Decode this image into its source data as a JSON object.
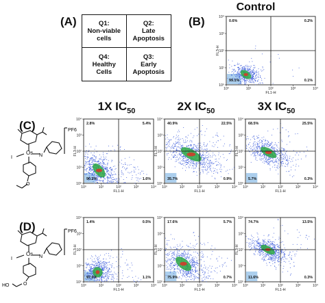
{
  "panels": {
    "A": "(A)",
    "B": "(B)",
    "C": "(C)",
    "D": "(D)"
  },
  "legend_table": [
    {
      "q": "Q1:",
      "line1": "Non-viable",
      "line2": "cells"
    },
    {
      "q": "Q2:",
      "line1": "Late",
      "line2": "Apoptosis"
    },
    {
      "q": "Q4:",
      "line1": "Healthy",
      "line2": "Cells"
    },
    {
      "q": "Q3:",
      "line1": "Early",
      "line2": "Apoptosis"
    }
  ],
  "control_title": "Control",
  "column_headers": [
    {
      "main": "1X IC",
      "sub": "50"
    },
    {
      "main": "2X IC",
      "sub": "50"
    },
    {
      "main": "3X IC",
      "sub": "50"
    }
  ],
  "counterion": "PF6",
  "axis_labels": {
    "x": "FL1-H",
    "y": "FL3-H"
  },
  "ticks": [
    "10⁰",
    "10¹",
    "10²",
    "10³",
    "10⁴"
  ],
  "colors": {
    "dots": "#3b5bdb",
    "core_green": "#2ea843",
    "core_red": "#d43a2a",
    "gate": "#9ec7ea"
  },
  "chart_data": [
    {
      "type": "scatter",
      "name": "control",
      "title": "Control",
      "xlabel": "FL1-H",
      "ylabel": "FL3-H",
      "xscale": "log",
      "yscale": "log",
      "xlim": [
        1,
        10000
      ],
      "ylim": [
        1,
        10000
      ],
      "quadrants": {
        "Q1": "0.6%",
        "Q2": "0.2%",
        "Q3": "0.1%",
        "Q4": "99.1%"
      },
      "cluster": {
        "cx": 0.22,
        "cy": 0.15,
        "rx": 0.09,
        "ry": 0.07,
        "angle": -35,
        "spread": 0.04,
        "n": 500
      }
    },
    {
      "type": "scatter",
      "name": "C-1X",
      "xlabel": "FL1-H",
      "ylabel": "FL3-H",
      "xscale": "log",
      "yscale": "log",
      "xlim": [
        1,
        10000
      ],
      "ylim": [
        1,
        10000
      ],
      "quadrants": {
        "Q1": "2.8%",
        "Q2": "5.4%",
        "Q3": "1.6%",
        "Q4": "90.2%"
      },
      "cluster": {
        "cx": 0.22,
        "cy": 0.2,
        "rx": 0.16,
        "ry": 0.09,
        "angle": -50,
        "spread": 0.25,
        "n": 800
      }
    },
    {
      "type": "scatter",
      "name": "C-2X",
      "xlabel": "FL1-H",
      "ylabel": "FL3-H",
      "xscale": "log",
      "yscale": "log",
      "xlim": [
        1,
        10000
      ],
      "ylim": [
        1,
        10000
      ],
      "quadrants": {
        "Q1": "40.9%",
        "Q2": "22.5%",
        "Q3": "0.9%",
        "Q4": "35.7%"
      },
      "cluster": {
        "cx": 0.38,
        "cy": 0.45,
        "rx": 0.22,
        "ry": 0.1,
        "angle": -30,
        "spread": 0.12,
        "n": 800
      }
    },
    {
      "type": "scatter",
      "name": "C-3X",
      "xlabel": "FL1-H",
      "ylabel": "FL3-H",
      "xscale": "log",
      "yscale": "log",
      "xlim": [
        1,
        10000
      ],
      "ylim": [
        1,
        10000
      ],
      "quadrants": {
        "Q1": "68.5%",
        "Q2": "25.5%",
        "Q3": "0.3%",
        "Q4": "5.7%"
      },
      "cluster": {
        "cx": 0.33,
        "cy": 0.48,
        "rx": 0.17,
        "ry": 0.08,
        "angle": -30,
        "spread": 0.1,
        "n": 700
      }
    },
    {
      "type": "scatter",
      "name": "D-1X",
      "xlabel": "FL1-H",
      "ylabel": "FL3-H",
      "xscale": "log",
      "yscale": "log",
      "xlim": [
        1,
        10000
      ],
      "ylim": [
        1,
        10000
      ],
      "quadrants": {
        "Q1": "1.4%",
        "Q2": "0.5%",
        "Q3": "1.1%",
        "Q4": "97.0%"
      },
      "cluster": {
        "cx": 0.2,
        "cy": 0.15,
        "rx": 0.1,
        "ry": 0.1,
        "angle": -60,
        "spread": 0.2,
        "n": 700
      }
    },
    {
      "type": "scatter",
      "name": "D-2X",
      "xlabel": "FL1-H",
      "ylabel": "FL3-H",
      "xscale": "log",
      "yscale": "log",
      "xlim": [
        1,
        10000
      ],
      "ylim": [
        1,
        10000
      ],
      "quadrants": {
        "Q1": "17.6%",
        "Q2": "5.7%",
        "Q3": "0.7%",
        "Q4": "75.9%"
      },
      "cluster": {
        "cx": 0.27,
        "cy": 0.28,
        "rx": 0.18,
        "ry": 0.1,
        "angle": -40,
        "spread": 0.15,
        "n": 800
      }
    },
    {
      "type": "scatter",
      "name": "D-3X",
      "xlabel": "FL1-H",
      "ylabel": "FL3-H",
      "xscale": "log",
      "yscale": "log",
      "xlim": [
        1,
        10000
      ],
      "ylim": [
        1,
        10000
      ],
      "quadrants": {
        "Q1": "74.7%",
        "Q2": "13.5%",
        "Q3": "0.3%",
        "Q4": "11.6%"
      },
      "cluster": {
        "cx": 0.32,
        "cy": 0.5,
        "rx": 0.15,
        "ry": 0.07,
        "angle": -30,
        "spread": 0.1,
        "n": 700
      }
    }
  ]
}
